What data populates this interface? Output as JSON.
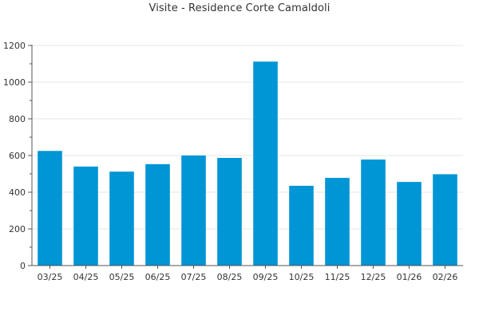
{
  "chart_data": {
    "type": "bar",
    "title": "Visite - Residence Corte Camaldoli",
    "xlabel": "",
    "ylabel": "",
    "categories": [
      "03/25",
      "04/25",
      "05/25",
      "06/25",
      "07/25",
      "08/25",
      "09/25",
      "10/25",
      "11/25",
      "12/25",
      "01/26",
      "02/26"
    ],
    "values": [
      625,
      540,
      512,
      553,
      600,
      587,
      1112,
      435,
      478,
      578,
      456,
      498
    ],
    "ylim": [
      0,
      1200
    ],
    "yticks": [
      0,
      200,
      400,
      600,
      800,
      1000,
      1200
    ],
    "grid": true,
    "legend": "none",
    "colors": {
      "bar": "#0095d5",
      "grid": "#e6e6e6",
      "axis": "#555555",
      "text": "#333333"
    }
  }
}
